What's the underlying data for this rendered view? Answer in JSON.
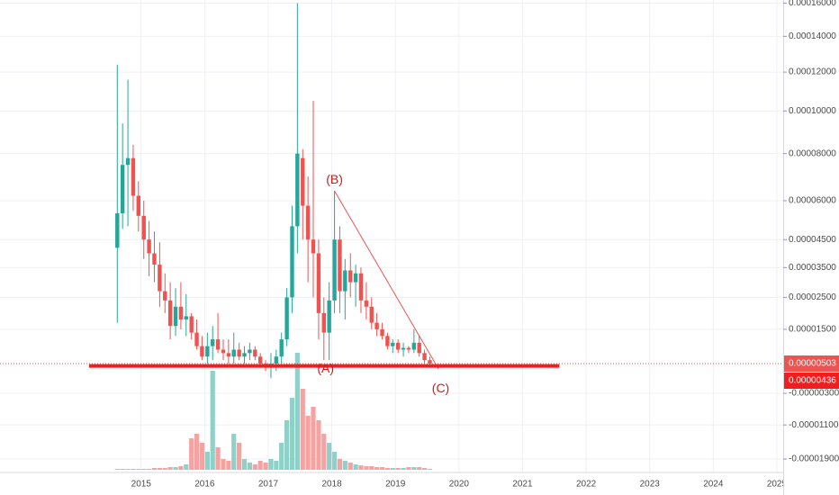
{
  "chart_data": {
    "type": "candlestick",
    "log_scale": true,
    "grid": true,
    "up_color": "#26a69a",
    "down_color": "#ef5350",
    "volume_up_color": "#8fd0c9",
    "volume_down_color": "#f5a3a2",
    "xlim": [
      2012.78,
      2025.1
    ],
    "xticks": [
      2015,
      2016,
      2017,
      2018,
      2019,
      2020,
      2021,
      2022,
      2023,
      2024,
      2025
    ],
    "ylim": [
      -2.2e-05,
      0.000162
    ],
    "yticks": [
      {
        "value": 0.00016,
        "label": "0.00016000"
      },
      {
        "value": 0.00014,
        "label": "0.00014000"
      },
      {
        "value": 0.00012,
        "label": "0.00012000"
      },
      {
        "value": 0.0001,
        "label": "0.00010000"
      },
      {
        "value": 8e-05,
        "label": "0.00008000"
      },
      {
        "value": 6e-05,
        "label": "0.00006000"
      },
      {
        "value": 4.5e-05,
        "label": "0.00004500"
      },
      {
        "value": 3.5e-05,
        "label": "0.00003500"
      },
      {
        "value": 2.5e-05,
        "label": "0.00002500"
      },
      {
        "value": 1.5e-05,
        "label": "0.00001500"
      },
      {
        "value": -3e-06,
        "label": "-0.00000300"
      },
      {
        "value": -1.1e-05,
        "label": "-0.00001100"
      },
      {
        "value": -1.9e-05,
        "label": "-0.00001900"
      }
    ],
    "x": [
      2014.625,
      2014.708,
      2014.792,
      2014.875,
      2014.958,
      2015.042,
      2015.125,
      2015.208,
      2015.292,
      2015.375,
      2015.458,
      2015.542,
      2015.625,
      2015.708,
      2015.792,
      2015.875,
      2015.958,
      2016.042,
      2016.125,
      2016.208,
      2016.292,
      2016.375,
      2016.458,
      2016.542,
      2016.625,
      2016.708,
      2016.792,
      2016.875,
      2016.958,
      2017.042,
      2017.125,
      2017.208,
      2017.292,
      2017.375,
      2017.458,
      2017.542,
      2017.625,
      2017.708,
      2017.792,
      2017.875,
      2017.958,
      2018.042,
      2018.125,
      2018.208,
      2018.292,
      2018.375,
      2018.458,
      2018.542,
      2018.625,
      2018.708,
      2018.792,
      2018.875,
      2018.958,
      2019.042,
      2019.125,
      2019.208,
      2019.292,
      2019.375,
      2019.458,
      2019.542
    ],
    "open": [
      4.2e-05,
      5.5e-05,
      7.5e-05,
      7.8e-05,
      6.2e-05,
      5.4e-05,
      4.5e-05,
      4e-05,
      3.6e-05,
      2.7e-05,
      2.4e-05,
      1.6e-05,
      2.2e-05,
      1.8e-05,
      1.9e-05,
      1.4e-05,
      1e-05,
      7e-06,
      1e-05,
      1.2e-05,
      9e-06,
      8e-06,
      7e-06,
      9e-06,
      7e-06,
      8e-06,
      9e-06,
      7e-06,
      5e-06,
      4e-06,
      5e-06,
      7e-06,
      1.2e-05,
      2.5e-05,
      5e-05,
      7.8e-05,
      5.8e-05,
      4.5e-05,
      4e-05,
      2e-05,
      1.4e-05,
      2.4e-05,
      4.5e-05,
      2.7e-05,
      3.4e-05,
      3e-05,
      3.3e-05,
      2.4e-05,
      2.2e-05,
      1.7e-05,
      1.5e-05,
      1.3e-05,
      1e-05,
      1.1e-05,
      9e-06,
      9.5e-06,
      9e-06,
      1.1e-05,
      8e-06,
      6e-06
    ],
    "high": [
      0.000124,
      9.4e-05,
      0.000116,
      8.4e-05,
      6.8e-05,
      6e-05,
      5.2e-05,
      4.8e-05,
      4.4e-05,
      3.3e-05,
      3e-05,
      2.8e-05,
      3e-05,
      2.6e-05,
      2e-05,
      1.8e-05,
      1.3e-05,
      1.4e-05,
      1.6e-05,
      2e-05,
      1.2e-05,
      1.2e-05,
      1.4e-05,
      1.1e-05,
      1e-05,
      1.1e-05,
      1e-05,
      8e-06,
      6e-06,
      8e-06,
      9e-06,
      1.4e-05,
      2.8e-05,
      5.8e-05,
      0.00016,
      8.2e-05,
      7e-05,
      0.000105,
      4.5e-05,
      2.5e-05,
      3e-05,
      6.4e-05,
      5e-05,
      3.8e-05,
      4e-05,
      3.6e-05,
      3.5e-05,
      3e-05,
      2.5e-05,
      2e-05,
      1.7e-05,
      1.4e-05,
      1.2e-05,
      1.2e-05,
      1.1e-05,
      1e-05,
      1.5e-05,
      1.3e-05,
      9e-06,
      7e-06
    ],
    "low": [
      1.7e-05,
      4.9e-05,
      5e-05,
      5.6e-05,
      4.8e-05,
      3.8e-05,
      3.2e-05,
      3e-05,
      2.2e-05,
      2e-05,
      1.2e-05,
      1.3e-05,
      1.5e-05,
      1.3e-05,
      1.2e-05,
      9e-06,
      6e-06,
      5e-06,
      6e-06,
      8e-06,
      6e-06,
      5e-06,
      5e-06,
      6e-06,
      5e-06,
      6e-06,
      6e-06,
      4e-06,
      3e-06,
      1e-06,
      3e-06,
      5e-06,
      1e-05,
      2e-05,
      4e-05,
      4.5e-05,
      3e-05,
      2.5e-05,
      1.2e-05,
      6e-06,
      6e-06,
      2e-05,
      2e-05,
      1.8e-05,
      2.5e-05,
      2.2e-05,
      2e-05,
      1.8e-05,
      1.5e-05,
      1.3e-05,
      1.2e-05,
      9e-06,
      8e-06,
      8e-06,
      7e-06,
      8e-06,
      8e-06,
      7e-06,
      5e-06,
      4.5e-06
    ],
    "close": [
      5.5e-05,
      7.5e-05,
      7.8e-05,
      6.2e-05,
      5.4e-05,
      4.5e-05,
      4e-05,
      3.6e-05,
      2.7e-05,
      2.4e-05,
      1.6e-05,
      2.2e-05,
      1.8e-05,
      1.9e-05,
      1.4e-05,
      1e-05,
      7e-06,
      1e-05,
      1.2e-05,
      9e-06,
      8e-06,
      7e-06,
      9e-06,
      7e-06,
      8e-06,
      9e-06,
      7e-06,
      5e-06,
      4e-06,
      5e-06,
      7e-06,
      1.2e-05,
      2.5e-05,
      5e-05,
      8e-05,
      5.8e-05,
      4.5e-05,
      4e-05,
      2e-05,
      1.4e-05,
      2.4e-05,
      4.5e-05,
      2.7e-05,
      3.4e-05,
      3e-05,
      3.3e-05,
      2.4e-05,
      2.2e-05,
      1.7e-05,
      1.5e-05,
      1.3e-05,
      1e-05,
      1.1e-05,
      9e-06,
      9.5e-06,
      9e-06,
      1.1e-05,
      8e-06,
      6e-06,
      5.03e-06
    ],
    "volume": [
      1,
      1,
      1,
      1,
      1,
      1,
      1,
      2,
      2,
      2,
      3,
      3,
      4,
      6,
      35,
      40,
      30,
      20,
      110,
      25,
      12,
      10,
      40,
      30,
      12,
      8,
      6,
      10,
      8,
      12,
      10,
      30,
      55,
      80,
      130,
      90,
      60,
      70,
      55,
      40,
      30,
      20,
      12,
      10,
      8,
      6,
      5,
      4,
      4,
      3,
      3,
      2,
      2,
      2,
      2,
      3,
      3,
      3,
      2,
      1
    ],
    "last_price_label": "0.00000503",
    "horizontal_line": {
      "value": 4.36e-06,
      "label": "0.00000436",
      "x": [
        2014.18,
        2021.58
      ],
      "color": "#f01e1e"
    },
    "trend_line": {
      "x": [
        2018.042,
        2019.68
      ],
      "y": [
        6.4e-05,
        3.5e-06
      ],
      "color": "#ef5350"
    },
    "annotations": [
      "(B)",
      "(A)",
      "(C)"
    ]
  }
}
